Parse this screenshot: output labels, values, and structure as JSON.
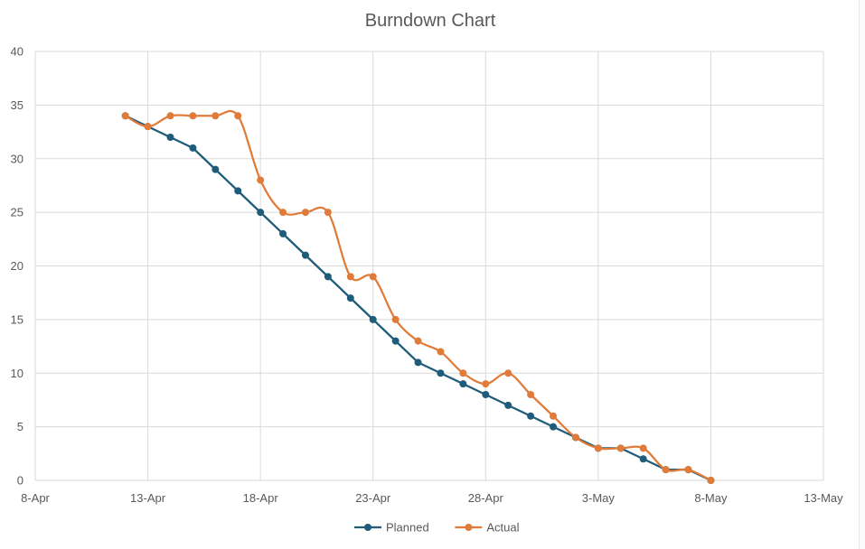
{
  "chart_data": {
    "type": "line",
    "title": "Burndown Chart",
    "xlabel": "",
    "ylabel": "",
    "x_axis_type": "date",
    "xlim": [
      "2024-04-08",
      "2024-05-13"
    ],
    "ylim": [
      0,
      40
    ],
    "y_ticks": [
      0,
      5,
      10,
      15,
      20,
      25,
      30,
      35,
      40
    ],
    "x_ticks": [
      "2024-04-08",
      "2024-04-13",
      "2024-04-18",
      "2024-04-23",
      "2024-04-28",
      "2024-05-03",
      "2024-05-08",
      "2024-05-13"
    ],
    "x_tick_labels": [
      "8-Apr",
      "13-Apr",
      "18-Apr",
      "23-Apr",
      "28-Apr",
      "3-May",
      "8-May",
      "13-May"
    ],
    "grid": true,
    "legend_position": "bottom",
    "series": [
      {
        "name": "Planned",
        "color": "#1f5c7a",
        "smooth": false,
        "points": [
          [
            "2024-04-12",
            34
          ],
          [
            "2024-04-13",
            33
          ],
          [
            "2024-04-14",
            32
          ],
          [
            "2024-04-15",
            31
          ],
          [
            "2024-04-16",
            29
          ],
          [
            "2024-04-17",
            27
          ],
          [
            "2024-04-18",
            25
          ],
          [
            "2024-04-19",
            23
          ],
          [
            "2024-04-20",
            21
          ],
          [
            "2024-04-21",
            19
          ],
          [
            "2024-04-22",
            17
          ],
          [
            "2024-04-23",
            15
          ],
          [
            "2024-04-24",
            13
          ],
          [
            "2024-04-25",
            11
          ],
          [
            "2024-04-26",
            10
          ],
          [
            "2024-04-27",
            9
          ],
          [
            "2024-04-28",
            8
          ],
          [
            "2024-04-29",
            7
          ],
          [
            "2024-04-30",
            6
          ],
          [
            "2024-05-01",
            5
          ],
          [
            "2024-05-02",
            4
          ],
          [
            "2024-05-03",
            3
          ],
          [
            "2024-05-04",
            3
          ],
          [
            "2024-05-05",
            2
          ],
          [
            "2024-05-06",
            1
          ],
          [
            "2024-05-07",
            1
          ],
          [
            "2024-05-08",
            0
          ]
        ]
      },
      {
        "name": "Actual",
        "color": "#e07b39",
        "smooth": true,
        "points": [
          [
            "2024-04-12",
            34
          ],
          [
            "2024-04-13",
            33
          ],
          [
            "2024-04-14",
            34
          ],
          [
            "2024-04-15",
            34
          ],
          [
            "2024-04-16",
            34
          ],
          [
            "2024-04-17",
            34
          ],
          [
            "2024-04-18",
            28
          ],
          [
            "2024-04-19",
            25
          ],
          [
            "2024-04-20",
            25
          ],
          [
            "2024-04-21",
            25
          ],
          [
            "2024-04-22",
            19
          ],
          [
            "2024-04-23",
            19
          ],
          [
            "2024-04-24",
            15
          ],
          [
            "2024-04-25",
            13
          ],
          [
            "2024-04-26",
            12
          ],
          [
            "2024-04-27",
            10
          ],
          [
            "2024-04-28",
            9
          ],
          [
            "2024-04-29",
            10
          ],
          [
            "2024-04-30",
            8
          ],
          [
            "2024-05-01",
            6
          ],
          [
            "2024-05-02",
            4
          ],
          [
            "2024-05-03",
            3
          ],
          [
            "2024-05-04",
            3
          ],
          [
            "2024-05-05",
            3
          ],
          [
            "2024-05-06",
            1
          ],
          [
            "2024-05-07",
            1
          ],
          [
            "2024-05-08",
            0
          ]
        ]
      }
    ]
  },
  "colors": {
    "grid": "#d9d9d9",
    "axis_text": "#595959",
    "planned": "#1f5c7a",
    "actual": "#e07b39"
  }
}
